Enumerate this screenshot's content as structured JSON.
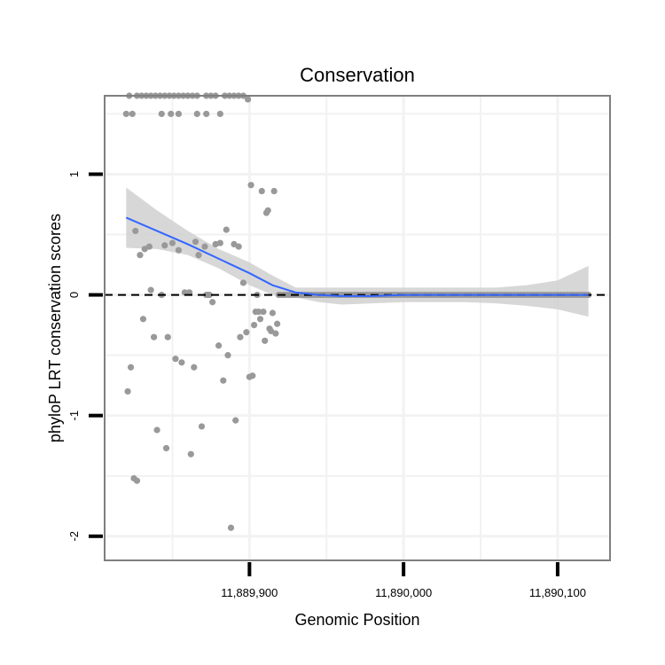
{
  "chart_data": {
    "type": "scatter",
    "title": "Conservation",
    "xlabel": "Genomic Position",
    "ylabel": "phyloP LRT conservation scores",
    "xlim": [
      11889806,
      11890134
    ],
    "ylim": [
      -2.2,
      1.65
    ],
    "x_ticks": [
      {
        "value": 11889900,
        "label": "11,889,900"
      },
      {
        "value": 11890000,
        "label": "11,890,000"
      },
      {
        "value": 11890100,
        "label": "11,890,100"
      }
    ],
    "y_ticks": [
      {
        "value": 1,
        "label": "1"
      },
      {
        "value": 0,
        "label": "0"
      },
      {
        "value": -1,
        "label": "-1"
      },
      {
        "value": -2,
        "label": "-2"
      }
    ],
    "x_minor_gridlines": [
      11889850,
      11889950,
      11890050
    ],
    "y_minor_gridlines": [
      1.5,
      0.5,
      -0.5,
      -1.5
    ],
    "reference_line": {
      "y": 0,
      "style": "dashed"
    },
    "colors": {
      "points": "#999999",
      "smooth_line": "#3366ff",
      "confidence_band": "#d0d0d0",
      "panel_border": "#7f7f7f",
      "gridline": "#f2f2f2"
    },
    "series": [
      {
        "name": "scores",
        "kind": "points",
        "x": [
          11889822,
          11889827,
          11889830,
          11889833,
          11889836,
          11889839,
          11889842,
          11889845,
          11889848,
          11889851,
          11889854,
          11889857,
          11889860,
          11889863,
          11889866,
          11889872,
          11889875,
          11889878,
          11889884,
          11889887,
          11889890,
          11889893,
          11889896,
          11889899,
          11889820,
          11889824,
          11889843,
          11889849,
          11889854,
          11889866,
          11889872,
          11889881,
          11889821,
          11889823,
          11889825,
          11889826,
          11889827,
          11889829,
          11889831,
          11889832,
          11889835,
          11889836,
          11889838,
          11889840,
          11889843,
          11889845,
          11889846,
          11889847,
          11889850,
          11889852,
          11889854,
          11889856,
          11889858,
          11889861,
          11889862,
          11889864,
          11889865,
          11889867,
          11889869,
          11889871,
          11889872,
          11889873,
          11889874,
          11889876,
          11889878,
          11889880,
          11889881,
          11889883,
          11889885,
          11889886,
          11889888,
          11889890,
          11889891,
          11889893,
          11889894,
          11889896,
          11889898,
          11889900,
          11889901,
          11889902,
          11889903,
          11889904,
          11889905,
          11889906,
          11889907,
          11889908,
          11889909,
          11889910,
          11889911,
          11889912,
          11889913,
          11889914,
          11889915,
          11889916,
          11889917,
          11889918,
          11889919
        ],
        "y": [
          1.65,
          1.65,
          1.65,
          1.65,
          1.65,
          1.65,
          1.65,
          1.65,
          1.65,
          1.65,
          1.65,
          1.65,
          1.65,
          1.65,
          1.65,
          1.65,
          1.65,
          1.65,
          1.65,
          1.65,
          1.65,
          1.65,
          1.65,
          1.62,
          1.5,
          1.5,
          1.5,
          1.5,
          1.5,
          1.5,
          1.5,
          1.5,
          -0.8,
          -0.6,
          -1.52,
          0.53,
          -1.54,
          0.33,
          -0.2,
          0.38,
          0.4,
          0.04,
          -0.35,
          -1.12,
          0.0,
          0.41,
          -1.27,
          -0.35,
          0.43,
          -0.53,
          0.37,
          -0.56,
          0.02,
          0.02,
          -1.32,
          -0.6,
          0.44,
          0.33,
          -1.09,
          0.4,
          0.0,
          0.0,
          0.0,
          -0.06,
          0.42,
          -0.42,
          0.43,
          -0.71,
          0.54,
          -0.5,
          -1.93,
          0.42,
          -1.04,
          0.4,
          -0.35,
          0.1,
          -0.31,
          -0.68,
          0.91,
          -0.67,
          -0.25,
          -0.14,
          0.0,
          -0.14,
          -0.2,
          0.86,
          -0.14,
          -0.38,
          0.68,
          0.7,
          -0.28,
          -0.3,
          -0.15,
          0.86,
          -0.32,
          -0.24,
          0.0
        ]
      },
      {
        "name": "loess fit",
        "kind": "smooth",
        "x": [
          11889820,
          11889840,
          11889860,
          11889880,
          11889900,
          11889915,
          11889930,
          11889945,
          11889960,
          11889980,
          11890000,
          11890020,
          11890040,
          11890060,
          11890080,
          11890100,
          11890120
        ],
        "y": [
          0.64,
          0.53,
          0.42,
          0.3,
          0.18,
          0.08,
          0.02,
          0.0,
          -0.01,
          -0.01,
          0.0,
          0.0,
          0.0,
          0.0,
          0.0,
          0.0,
          0.0
        ],
        "lower": [
          0.39,
          0.38,
          0.33,
          0.22,
          0.08,
          0.0,
          -0.02,
          -0.06,
          -0.08,
          -0.07,
          -0.06,
          -0.06,
          -0.06,
          -0.07,
          -0.09,
          -0.12,
          -0.18
        ],
        "upper": [
          0.89,
          0.7,
          0.53,
          0.38,
          0.27,
          0.16,
          0.06,
          0.06,
          0.06,
          0.06,
          0.06,
          0.06,
          0.06,
          0.06,
          0.08,
          0.12,
          0.24
        ]
      },
      {
        "name": "zero-score positions",
        "kind": "points",
        "x_range": [
          11889920,
          11890120
        ],
        "step": 2,
        "y": 0
      }
    ]
  }
}
